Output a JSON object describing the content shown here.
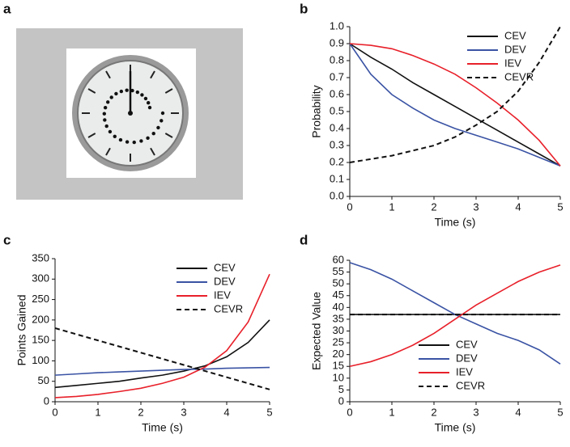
{
  "panel_labels": [
    "a",
    "b",
    "c",
    "d"
  ],
  "chart_data": [
    {
      "type": "line",
      "xlabel": "Time (s)",
      "ylabel": "Probability",
      "legend": "upper right",
      "x": [
        0,
        0.5,
        1,
        1.5,
        2,
        2.5,
        3,
        3.5,
        4,
        4.5,
        5
      ],
      "xlim": [
        0,
        5
      ],
      "xticks": [
        0,
        1,
        2,
        3,
        4,
        5
      ],
      "ylim": [
        0,
        1
      ],
      "yticks": [
        {
          "value": 0,
          "label": "0.0"
        },
        {
          "value": 0.1,
          "label": "0.1"
        },
        {
          "value": 0.2,
          "label": "0.2"
        },
        {
          "value": 0.3,
          "label": "0.3"
        },
        {
          "value": 0.4,
          "label": "0.4"
        },
        {
          "value": 0.5,
          "label": "0.5"
        },
        {
          "value": 0.6,
          "label": "0.6"
        },
        {
          "value": 0.7,
          "label": "0.7"
        },
        {
          "value": 0.8,
          "label": "0.8"
        },
        {
          "value": 0.9,
          "label": "0.9"
        },
        {
          "value": 1,
          "label": "1.0"
        }
      ],
      "series": [
        {
          "name": "CEV",
          "color": "#111111",
          "style": "solid",
          "values": [
            0.9,
            0.82,
            0.75,
            0.67,
            0.6,
            0.53,
            0.46,
            0.39,
            0.32,
            0.25,
            0.18
          ]
        },
        {
          "name": "DEV",
          "color": "#3a53a4",
          "style": "solid",
          "values": [
            0.9,
            0.72,
            0.6,
            0.52,
            0.45,
            0.4,
            0.36,
            0.32,
            0.28,
            0.23,
            0.18
          ]
        },
        {
          "name": "IEV",
          "color": "#e8202a",
          "style": "solid",
          "values": [
            0.9,
            0.89,
            0.87,
            0.83,
            0.78,
            0.72,
            0.64,
            0.55,
            0.45,
            0.33,
            0.18
          ]
        },
        {
          "name": "CEVR",
          "color": "#111111",
          "style": "dashed",
          "values": [
            0.2,
            0.22,
            0.24,
            0.27,
            0.3,
            0.35,
            0.42,
            0.5,
            0.62,
            0.79,
            1.0
          ]
        }
      ]
    },
    {
      "type": "line",
      "xlabel": "Time (s)",
      "ylabel": "Points Gained",
      "legend": "upper right",
      "x": [
        0,
        0.5,
        1,
        1.5,
        2,
        2.5,
        3,
        3.5,
        4,
        4.5,
        5
      ],
      "xlim": [
        0,
        5
      ],
      "xticks": [
        0,
        1,
        2,
        3,
        4,
        5
      ],
      "ylim": [
        0,
        350
      ],
      "yticks": [
        0,
        50,
        100,
        150,
        200,
        250,
        300,
        350
      ],
      "series": [
        {
          "name": "CEV",
          "color": "#111111",
          "style": "solid",
          "values": [
            35,
            40,
            45,
            50,
            58,
            65,
            75,
            88,
            110,
            145,
            200
          ]
        },
        {
          "name": "DEV",
          "color": "#3a53a4",
          "style": "solid",
          "values": [
            65,
            68,
            71,
            73,
            75,
            77,
            79,
            80,
            82,
            83,
            84
          ]
        },
        {
          "name": "IEV",
          "color": "#e8202a",
          "style": "solid",
          "values": [
            10,
            13,
            18,
            25,
            33,
            45,
            60,
            85,
            125,
            195,
            312
          ]
        },
        {
          "name": "CEVR",
          "color": "#111111",
          "style": "dashed",
          "values": [
            180,
            165,
            150,
            135,
            120,
            105,
            90,
            75,
            60,
            45,
            30
          ]
        }
      ]
    },
    {
      "type": "line",
      "xlabel": "Time (s)",
      "ylabel": "Expected Value",
      "legend": "lower center",
      "x": [
        0,
        0.5,
        1,
        1.5,
        2,
        2.5,
        3,
        3.5,
        4,
        4.5,
        5
      ],
      "xlim": [
        0,
        5
      ],
      "xticks": [
        0,
        1,
        2,
        3,
        4,
        5
      ],
      "ylim": [
        0,
        60
      ],
      "yticks": [
        0,
        5,
        10,
        15,
        20,
        25,
        30,
        35,
        40,
        45,
        50,
        55,
        60
      ],
      "series": [
        {
          "name": "CEV",
          "color": "#111111",
          "style": "solid",
          "values": [
            37,
            37,
            37,
            37,
            37,
            37,
            37,
            37,
            37,
            37,
            37
          ]
        },
        {
          "name": "DEV",
          "color": "#3a53a4",
          "style": "solid",
          "values": [
            59,
            56,
            52,
            47,
            42,
            37,
            33,
            29,
            26,
            22,
            16
          ]
        },
        {
          "name": "IEV",
          "color": "#e8202a",
          "style": "solid",
          "values": [
            15,
            17,
            20,
            24,
            29,
            35,
            41,
            46,
            51,
            55,
            58
          ]
        },
        {
          "name": "CEVR",
          "color": "#111111",
          "style": "dashed",
          "values": [
            37,
            37,
            37,
            37,
            37,
            37,
            37,
            37,
            37,
            37,
            37
          ]
        }
      ]
    }
  ]
}
